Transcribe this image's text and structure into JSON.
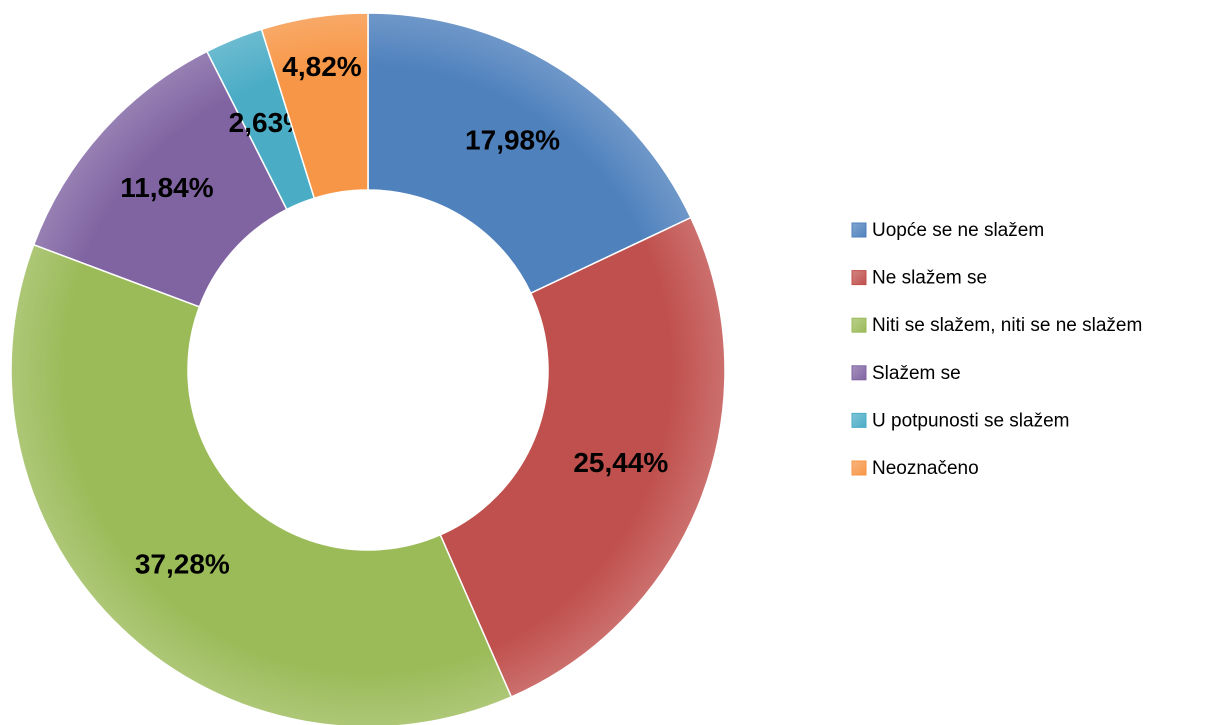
{
  "chart_data": {
    "type": "donut",
    "categories": [
      "Uopće se ne slažem",
      "Ne slažem se",
      "Niti se slažem, niti se ne slažem",
      "Slažem se",
      "U potpunosti se slažem",
      "Neoznačeno"
    ],
    "values": [
      17.98,
      25.44,
      37.28,
      11.84,
      2.63,
      4.82
    ],
    "value_labels": [
      "17,98%",
      "25,44%",
      "37,28%",
      "11,84%",
      "2,63%",
      "4,82%"
    ],
    "colors": [
      "#4f81bd",
      "#c0504d",
      "#9bbb59",
      "#8064a2",
      "#4bacc6",
      "#f79646"
    ],
    "legend": "right"
  }
}
